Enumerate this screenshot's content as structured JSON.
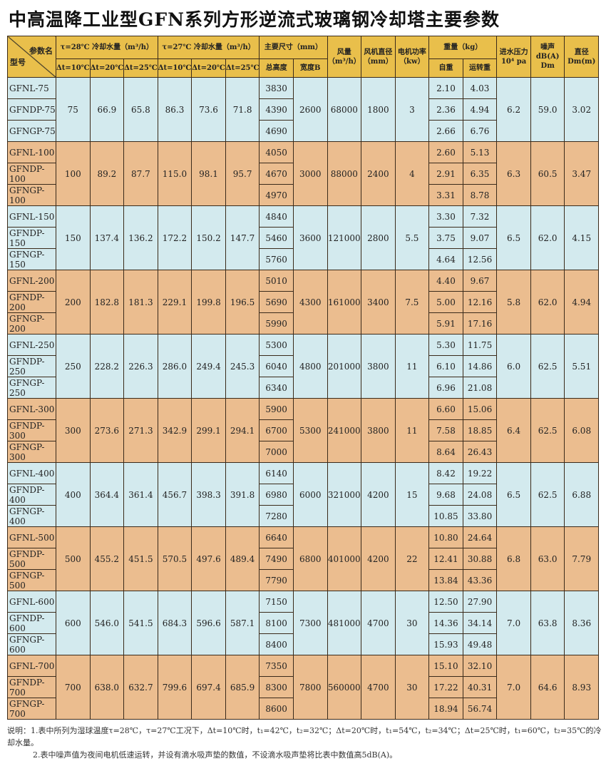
{
  "title": "中高温降工业型GFN系列方形逆流式玻璃钢冷却塔主要参数",
  "header": {
    "param_name": "参数名",
    "model": "型号",
    "t28": "τ=28℃ 冷却水量（m³/h）",
    "t27": "τ=27℃ 冷却水量（m³/h）",
    "dt10": "Δt=10℃",
    "dt20": "Δt=20℃",
    "dt25": "Δt=25℃",
    "dims": "主要尺寸（mm）",
    "height": "总高度",
    "width": "宽度B",
    "air": "风量（m³/h）",
    "fan": "风机直径（mm）",
    "power": "电机功率（kw）",
    "weight": "重量（kg）",
    "self": "自重",
    "run": "运转重",
    "pressure": "进水压力 10⁴ pa",
    "noise": "噪声 dB(A) Dm",
    "diameter": "直径 Dm(m)"
  },
  "groups": [
    {
      "models": [
        "GFNL-75",
        "GFNDP-75",
        "GFNGP-75"
      ],
      "t28": [
        "75",
        "66.9",
        "65.8"
      ],
      "t27": [
        "86.3",
        "73.6",
        "71.8"
      ],
      "heights": [
        "3830",
        "4390",
        "4690"
      ],
      "width": "2600",
      "air": "68000",
      "fan": "1800",
      "power": "3",
      "self": [
        "2.10",
        "2.36",
        "2.66"
      ],
      "run": [
        "4.03",
        "4.94",
        "6.76"
      ],
      "pressure": "6.2",
      "noise": "59.0",
      "diameter": "3.02"
    },
    {
      "models": [
        "GFNL-100",
        "GFNDP-100",
        "GFNGP-100"
      ],
      "t28": [
        "100",
        "89.2",
        "87.7"
      ],
      "t27": [
        "115.0",
        "98.1",
        "95.7"
      ],
      "heights": [
        "4050",
        "4670",
        "4970"
      ],
      "width": "3000",
      "air": "88000",
      "fan": "2400",
      "power": "4",
      "self": [
        "2.60",
        "2.91",
        "3.31"
      ],
      "run": [
        "5.13",
        "6.35",
        "8.78"
      ],
      "pressure": "6.3",
      "noise": "60.5",
      "diameter": "3.47"
    },
    {
      "models": [
        "GFNL-150",
        "GFNDP-150",
        "GFNGP-150"
      ],
      "t28": [
        "150",
        "137.4",
        "136.2"
      ],
      "t27": [
        "172.2",
        "150.2",
        "147.7"
      ],
      "heights": [
        "4840",
        "5460",
        "5760"
      ],
      "width": "3600",
      "air": "121000",
      "fan": "2800",
      "power": "5.5",
      "self": [
        "3.30",
        "3.75",
        "4.64"
      ],
      "run": [
        "7.32",
        "9.07",
        "12.56"
      ],
      "pressure": "6.5",
      "noise": "62.0",
      "diameter": "4.15"
    },
    {
      "models": [
        "GFNL-200",
        "GFNDP-200",
        "GFNGP-200"
      ],
      "t28": [
        "200",
        "182.8",
        "181.3"
      ],
      "t27": [
        "229.1",
        "199.8",
        "196.5"
      ],
      "heights": [
        "5010",
        "5690",
        "5990"
      ],
      "width": "4300",
      "air": "161000",
      "fan": "3400",
      "power": "7.5",
      "self": [
        "4.40",
        "5.00",
        "5.91"
      ],
      "run": [
        "9.67",
        "12.16",
        "17.16"
      ],
      "pressure": "5.8",
      "noise": "62.0",
      "diameter": "4.94"
    },
    {
      "models": [
        "GFNL-250",
        "GFNDP-250",
        "GFNGP-250"
      ],
      "t28": [
        "250",
        "228.2",
        "226.3"
      ],
      "t27": [
        "286.0",
        "249.4",
        "245.3"
      ],
      "heights": [
        "5300",
        "6040",
        "6340"
      ],
      "width": "4800",
      "air": "201000",
      "fan": "3800",
      "power": "11",
      "self": [
        "5.30",
        "6.10",
        "6.96"
      ],
      "run": [
        "11.75",
        "14.86",
        "21.08"
      ],
      "pressure": "6.0",
      "noise": "62.5",
      "diameter": "5.51"
    },
    {
      "models": [
        "GFNL-300",
        "GFNDP-300",
        "GFNGP-300"
      ],
      "t28": [
        "300",
        "273.6",
        "271.3"
      ],
      "t27": [
        "342.9",
        "299.1",
        "294.1"
      ],
      "heights": [
        "5900",
        "6700",
        "7000"
      ],
      "width": "5300",
      "air": "241000",
      "fan": "3800",
      "power": "11",
      "self": [
        "6.60",
        "7.58",
        "8.64"
      ],
      "run": [
        "15.06",
        "18.85",
        "26.43"
      ],
      "pressure": "6.4",
      "noise": "62.5",
      "diameter": "6.08"
    },
    {
      "models": [
        "GFNL-400",
        "GFNDP-400",
        "GFNGP-400"
      ],
      "t28": [
        "400",
        "364.4",
        "361.4"
      ],
      "t27": [
        "456.7",
        "398.3",
        "391.8"
      ],
      "heights": [
        "6140",
        "6980",
        "7280"
      ],
      "width": "6000",
      "air": "321000",
      "fan": "4200",
      "power": "15",
      "self": [
        "8.42",
        "9.68",
        "10.85"
      ],
      "run": [
        "19.22",
        "24.08",
        "33.80"
      ],
      "pressure": "6.5",
      "noise": "62.5",
      "diameter": "6.88"
    },
    {
      "models": [
        "GFNL-500",
        "GFNDP-500",
        "GFNGP-500"
      ],
      "t28": [
        "500",
        "455.2",
        "451.5"
      ],
      "t27": [
        "570.5",
        "497.6",
        "489.4"
      ],
      "heights": [
        "6640",
        "7490",
        "7790"
      ],
      "width": "6800",
      "air": "401000",
      "fan": "4200",
      "power": "22",
      "self": [
        "10.80",
        "12.41",
        "13.84"
      ],
      "run": [
        "24.64",
        "30.88",
        "43.36"
      ],
      "pressure": "6.8",
      "noise": "63.0",
      "diameter": "7.79"
    },
    {
      "models": [
        "GFNL-600",
        "GFNDP-600",
        "GFNGP-600"
      ],
      "t28": [
        "600",
        "546.0",
        "541.5"
      ],
      "t27": [
        "684.3",
        "596.6",
        "587.1"
      ],
      "heights": [
        "7150",
        "8100",
        "8400"
      ],
      "width": "7300",
      "air": "481000",
      "fan": "4700",
      "power": "30",
      "self": [
        "12.50",
        "14.36",
        "15.93"
      ],
      "run": [
        "27.90",
        "34.14",
        "49.48"
      ],
      "pressure": "7.0",
      "noise": "63.8",
      "diameter": "8.36"
    },
    {
      "models": [
        "GFNL-700",
        "GFNDP-700",
        "GFNGP-700"
      ],
      "t28": [
        "700",
        "638.0",
        "632.7"
      ],
      "t27": [
        "799.6",
        "697.4",
        "685.9"
      ],
      "heights": [
        "7350",
        "8300",
        "8600"
      ],
      "width": "7800",
      "air": "560000",
      "fan": "4700",
      "power": "30",
      "self": [
        "15.10",
        "17.22",
        "18.94"
      ],
      "run": [
        "32.10",
        "40.31",
        "56.74"
      ],
      "pressure": "7.0",
      "noise": "64.6",
      "diameter": "8.93"
    }
  ],
  "notes": [
    "说明：1.表中所列为湿球温度τ=28℃，τ=27℃工况下，Δt=10℃时，t₁=42℃，t₂=32℃；Δt=20℃时，t₁=54℃，t₂=34℃；Δt=25℃时，t₁=60℃，t₂=35℃的冷却水量。",
    "2.表中噪声值为夜间电机低速运转，并设有滴水吸声垫的数值，不设滴水吸声垫将比表中数值高5dB(A)。"
  ],
  "colors": {
    "header": "#e9bf4b",
    "row_blue": "#d3eaee",
    "row_tan": "#ebbd8f"
  }
}
